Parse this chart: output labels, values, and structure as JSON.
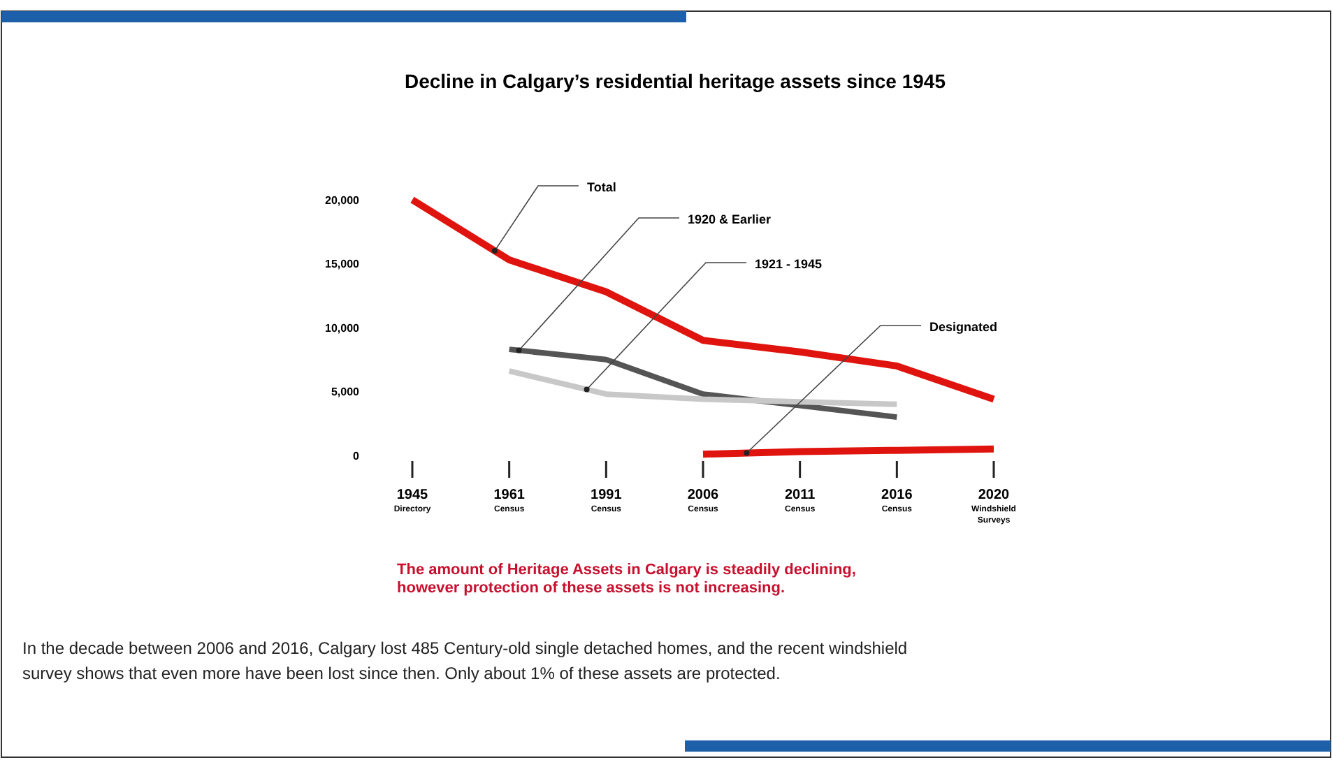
{
  "chart_data": {
    "type": "line",
    "title": "Decline in Calgary’s residential heritage assets since 1945",
    "categories": [
      "1945\nDirectory",
      "1961\nCensus",
      "1991\nCensus",
      "2006\nCensus",
      "2011\nCensus",
      "2016\nCensus",
      "2020\nWindshield\nSurveys"
    ],
    "series": [
      {
        "name": "Total",
        "color": "#e0140f",
        "values": [
          20000,
          15300,
          12800,
          9000,
          8100,
          7000,
          4400
        ]
      },
      {
        "name": "1920 & Earlier",
        "color": "#555555",
        "values": [
          null,
          8300,
          7500,
          4800,
          3900,
          3000,
          null
        ]
      },
      {
        "name": "1921 - 1945",
        "color": "#c8c8c8",
        "values": [
          null,
          6600,
          4800,
          4400,
          4200,
          4000,
          null
        ]
      },
      {
        "name": "Designated",
        "color": "#e0140f",
        "values": [
          null,
          null,
          null,
          100,
          300,
          400,
          500
        ]
      }
    ],
    "ylim": [
      0,
      20000
    ],
    "yticks": [
      {
        "value": 0,
        "label": "0"
      },
      {
        "value": 5000,
        "label": "5,000"
      },
      {
        "value": 10000,
        "label": "10,000"
      },
      {
        "value": 15000,
        "label": "15,000"
      },
      {
        "value": 20000,
        "label": "20,000"
      }
    ],
    "grid": false,
    "marker": "none",
    "line_style": "solid",
    "annotations": [
      "The amount of Heritage Assets in Calgary is steadily declining,\nhowever protection of these assets is not increasing.",
      "In the decade between 2006 and 2016, Calgary lost 485 Century-old single detached homes, and the recent windshield\nsurvey shows that even more have been lost since then. Only about 1% of these assets are protected."
    ]
  }
}
